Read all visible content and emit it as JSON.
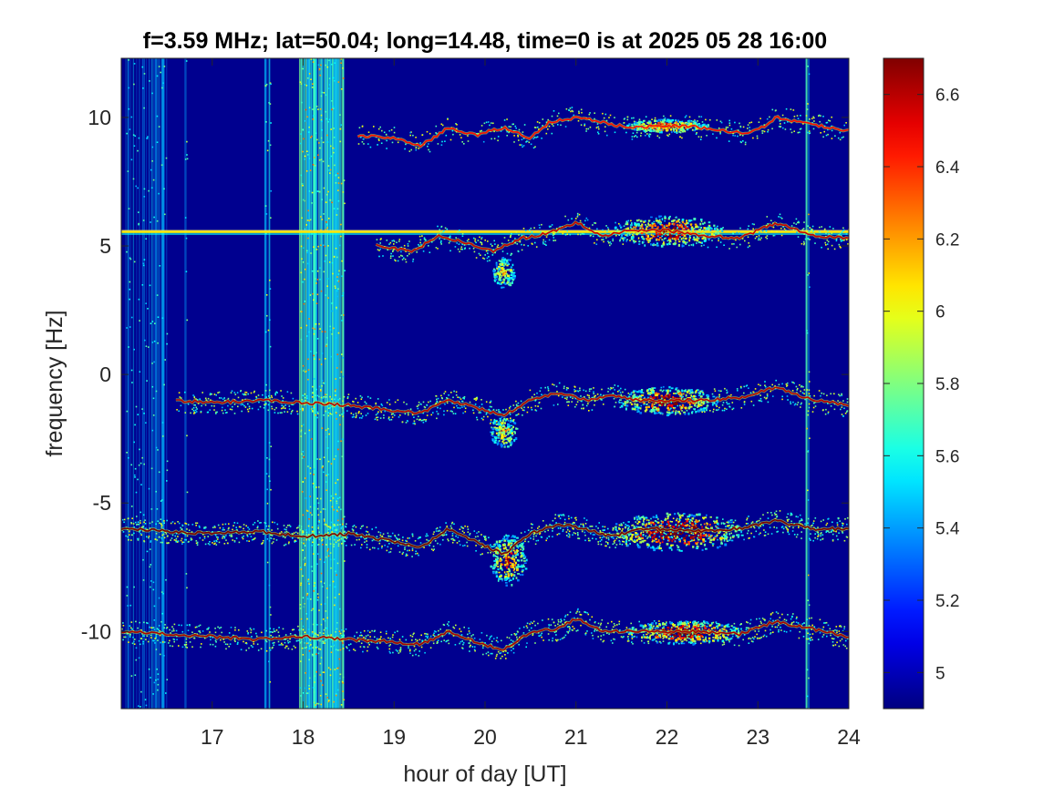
{
  "chart_data": {
    "type": "heatmap",
    "title": "f=3.59 MHz;  lat=50.04; long=14.48, time=0 is at 2025 05 28 16:00",
    "xlabel": "hour of day [UT]",
    "ylabel": "frequency [Hz]",
    "xlim": [
      16,
      24
    ],
    "ylim": [
      -13,
      12.3
    ],
    "x_ticks": [
      17,
      18,
      19,
      20,
      21,
      22,
      23,
      24
    ],
    "x_tick_labels": [
      "17",
      "18",
      "19",
      "20",
      "21",
      "22",
      "23",
      "24"
    ],
    "y_ticks": [
      10,
      5,
      0,
      -5,
      -10
    ],
    "y_tick_labels": [
      "10",
      "5",
      "0",
      "-5",
      "-10"
    ],
    "colorbar": {
      "colormap": "jet",
      "clim": [
        4.9,
        6.7
      ],
      "ticks": [
        6.6,
        6.4,
        6.2,
        6,
        5.8,
        5.6,
        5.4,
        5.2,
        5
      ],
      "tick_labels": [
        "6.6",
        "6.4",
        "6.2",
        "6",
        "5.8",
        "5.6",
        "5.4",
        "5.2",
        "5"
      ]
    },
    "background_color": "#00008f",
    "traces": [
      {
        "name": "trace_+10Hz",
        "x": [
          18.6,
          19.0,
          19.3,
          19.6,
          19.9,
          20.2,
          20.5,
          20.7,
          21.0,
          21.3,
          21.6,
          22.0,
          22.4,
          22.8,
          23.0,
          23.2,
          23.5,
          23.8,
          24.0
        ],
        "y": [
          9.3,
          9.2,
          8.9,
          9.6,
          9.3,
          9.6,
          9.2,
          9.8,
          10.0,
          9.8,
          9.6,
          9.7,
          9.6,
          9.4,
          9.5,
          10.0,
          9.8,
          9.6,
          9.5
        ],
        "strength": 0.55
      },
      {
        "name": "trace_+5Hz",
        "x": [
          18.8,
          19.2,
          19.5,
          19.8,
          20.1,
          20.4,
          20.7,
          21.0,
          21.3,
          21.6,
          22.0,
          22.4,
          22.8,
          23.2,
          23.6,
          24.0
        ],
        "y": [
          5.0,
          4.8,
          5.4,
          5.1,
          4.8,
          5.3,
          5.5,
          5.9,
          5.4,
          5.6,
          5.6,
          5.4,
          5.3,
          5.9,
          5.4,
          5.3
        ],
        "strength": 0.75
      },
      {
        "name": "trace_0Hz",
        "x": [
          16.6,
          17.0,
          17.5,
          18.0,
          18.5,
          19.0,
          19.3,
          19.6,
          19.9,
          20.2,
          20.5,
          20.8,
          21.1,
          21.4,
          21.7,
          22.0,
          22.4,
          22.8,
          23.2,
          23.6,
          24.0
        ],
        "y": [
          -1.0,
          -1.1,
          -1.0,
          -1.1,
          -1.2,
          -1.4,
          -1.5,
          -1.0,
          -1.3,
          -1.6,
          -1.0,
          -0.7,
          -1.0,
          -0.8,
          -1.0,
          -1.0,
          -1.0,
          -0.9,
          -0.5,
          -1.0,
          -1.2
        ],
        "strength": 0.8
      },
      {
        "name": "trace_-6Hz",
        "x": [
          16.0,
          16.5,
          17.0,
          17.5,
          18.0,
          18.5,
          19.0,
          19.3,
          19.6,
          19.9,
          20.2,
          20.5,
          20.8,
          21.1,
          21.4,
          21.7,
          22.0,
          22.4,
          22.8,
          23.2,
          23.6,
          24.0
        ],
        "y": [
          -6.0,
          -6.1,
          -6.2,
          -6.1,
          -6.3,
          -6.2,
          -6.5,
          -6.7,
          -6.0,
          -6.5,
          -7.0,
          -6.2,
          -5.8,
          -6.0,
          -6.3,
          -6.0,
          -6.0,
          -6.1,
          -6.0,
          -5.7,
          -6.0,
          -6.0
        ],
        "strength": 1.0
      },
      {
        "name": "trace_-10Hz",
        "x": [
          16.0,
          16.5,
          17.0,
          17.5,
          18.0,
          18.5,
          19.0,
          19.3,
          19.6,
          19.9,
          20.2,
          20.5,
          20.8,
          21.0,
          21.3,
          21.7,
          22.0,
          22.4,
          22.8,
          23.2,
          23.6,
          24.0
        ],
        "y": [
          -10.0,
          -10.1,
          -10.2,
          -10.3,
          -10.2,
          -10.3,
          -10.4,
          -10.5,
          -10.0,
          -10.4,
          -10.7,
          -10.0,
          -9.9,
          -9.5,
          -10.0,
          -10.0,
          -10.0,
          -10.0,
          -10.1,
          -9.6,
          -9.9,
          -10.2
        ],
        "strength": 0.85
      }
    ],
    "blobs": [
      {
        "x": 22.0,
        "y": 9.7,
        "wx": 0.45,
        "wy": 0.25,
        "strength": 0.7
      },
      {
        "x": 22.0,
        "y": 5.6,
        "wx": 0.6,
        "wy": 0.6,
        "strength": 0.85
      },
      {
        "x": 22.0,
        "y": -1.0,
        "wx": 0.55,
        "wy": 0.55,
        "strength": 0.9
      },
      {
        "x": 22.1,
        "y": -6.1,
        "wx": 0.75,
        "wy": 0.75,
        "strength": 1.0
      },
      {
        "x": 22.2,
        "y": -10.0,
        "wx": 0.65,
        "wy": 0.45,
        "strength": 0.95
      },
      {
        "x": 20.25,
        "y": -7.2,
        "wx": 0.2,
        "wy": 1.0,
        "strength": 0.6
      },
      {
        "x": 20.2,
        "y": -2.2,
        "wx": 0.15,
        "wy": 0.6,
        "strength": 0.4
      },
      {
        "x": 20.2,
        "y": 4.0,
        "wx": 0.12,
        "wy": 0.6,
        "strength": 0.4
      }
    ],
    "horizontal_lines": [
      {
        "y": 5.55,
        "x0": 16.0,
        "x1": 24.0,
        "strength": 0.65
      }
    ],
    "vertical_bands": [
      {
        "x0": 16.05,
        "x1": 16.5,
        "density": 0.35
      },
      {
        "x0": 16.7,
        "x1": 16.72,
        "density": 0.5
      },
      {
        "x0": 17.58,
        "x1": 17.64,
        "density": 0.6
      },
      {
        "x0": 17.96,
        "x1": 18.45,
        "density": 0.9
      },
      {
        "x0": 23.53,
        "x1": 23.56,
        "density": 0.8
      }
    ]
  }
}
